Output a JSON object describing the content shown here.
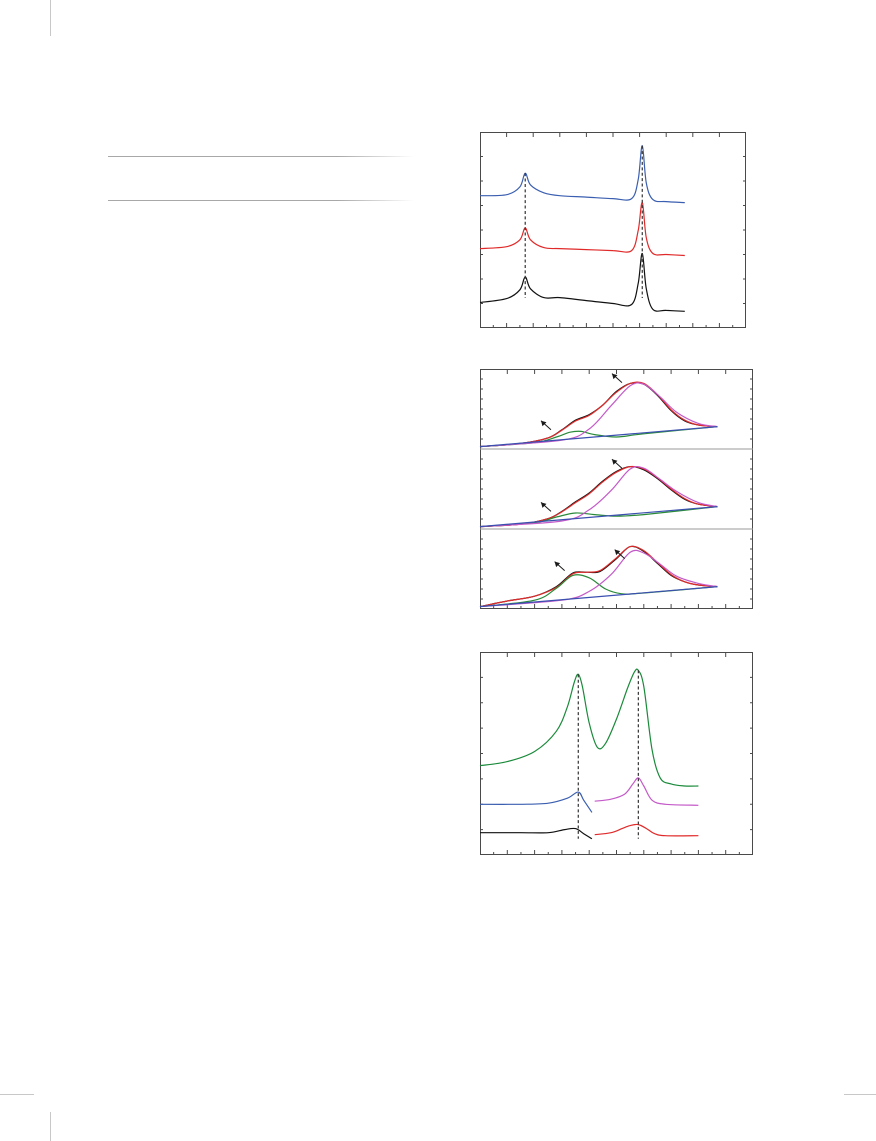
{
  "chart_data": [
    {
      "type": "line",
      "title": "",
      "xlim": [
        0,
        10
      ],
      "ylim": [
        0,
        10
      ],
      "grid": false,
      "reference_lines_x": [
        1.7,
        6.1
      ],
      "series": [
        {
          "color": "#3b5fb0",
          "x": [
            0.0,
            1.0,
            1.5,
            1.7,
            1.9,
            2.4,
            3.0,
            4.0,
            5.0,
            5.7,
            5.95,
            6.1,
            6.25,
            6.5,
            7.0,
            7.7
          ],
          "y": [
            6.75,
            6.8,
            7.2,
            7.9,
            7.3,
            6.9,
            6.75,
            6.68,
            6.6,
            6.6,
            7.6,
            9.3,
            7.4,
            6.55,
            6.45,
            6.4
          ]
        },
        {
          "color": "#e02a2a",
          "x": [
            0.0,
            1.0,
            1.5,
            1.7,
            1.9,
            2.4,
            3.0,
            4.0,
            5.0,
            5.7,
            5.95,
            6.1,
            6.25,
            6.5,
            7.0,
            7.7
          ],
          "y": [
            4.05,
            4.15,
            4.5,
            5.1,
            4.5,
            4.1,
            4.05,
            4.0,
            3.95,
            3.95,
            5.0,
            6.4,
            4.6,
            3.8,
            3.75,
            3.7
          ]
        },
        {
          "color": "#111111",
          "x": [
            0.0,
            1.0,
            1.5,
            1.7,
            1.9,
            2.4,
            3.0,
            4.0,
            5.0,
            5.7,
            5.95,
            6.1,
            6.25,
            6.5,
            7.0,
            7.7
          ],
          "y": [
            1.3,
            1.5,
            1.95,
            2.6,
            2.0,
            1.55,
            1.55,
            1.4,
            1.25,
            1.2,
            2.3,
            3.8,
            2.0,
            0.95,
            0.9,
            0.85
          ]
        }
      ]
    },
    {
      "type": "line",
      "title": "",
      "xlim": [
        0,
        10
      ],
      "ylim": [
        0,
        10
      ],
      "grid": false,
      "panels": [
        {
          "series": [
            {
              "color": "#111111",
              "x": [
                0.0,
                1.5,
                2.5,
                3.0,
                3.5,
                4.0,
                4.5,
                5.0,
                5.5,
                6.0,
                6.5,
                7.0,
                7.5,
                8.0,
                8.7
              ],
              "y": [
                0.3,
                0.7,
                1.4,
                2.4,
                3.6,
                4.3,
                5.5,
                7.2,
                8.2,
                8.1,
                6.7,
                4.8,
                3.5,
                3.0,
                2.8
              ]
            },
            {
              "color": "#e02a2a",
              "x": [
                0.0,
                1.5,
                2.5,
                3.0,
                3.5,
                4.0,
                4.5,
                5.0,
                5.5,
                6.0,
                6.5,
                7.0,
                7.5,
                8.0,
                8.7
              ],
              "y": [
                0.3,
                0.7,
                1.4,
                2.35,
                3.5,
                4.2,
                5.5,
                7.1,
                8.2,
                8.2,
                6.8,
                4.9,
                3.6,
                3.0,
                2.8
              ]
            },
            {
              "color": "#2a8a3a",
              "x": [
                0.0,
                2.0,
                2.8,
                3.3,
                3.7,
                4.2,
                5.0,
                6.0,
                8.7
              ],
              "y": [
                0.3,
                0.8,
                1.5,
                2.1,
                2.2,
                1.8,
                1.5,
                1.9,
                2.8
              ]
            },
            {
              "color": "#c45ac8",
              "x": [
                0.0,
                3.0,
                4.0,
                4.8,
                5.5,
                6.0,
                6.6,
                7.2,
                8.0,
                8.7
              ],
              "y": [
                0.3,
                1.1,
                2.5,
                5.4,
                7.9,
                8.1,
                6.5,
                4.6,
                3.2,
                2.8
              ]
            },
            {
              "color": "#3b4fb0",
              "x": [
                0.0,
                8.7
              ],
              "y": [
                0.3,
                2.8
              ]
            }
          ],
          "annotations": [
            {
              "label": "",
              "x": 2.6,
              "y": 2.4
            },
            {
              "label": "",
              "x": 5.2,
              "y": 8.3
            }
          ]
        },
        {
          "series": [
            {
              "color": "#111111",
              "x": [
                0.0,
                1.5,
                2.5,
                3.0,
                3.5,
                4.0,
                4.5,
                5.0,
                5.5,
                6.0,
                6.5,
                7.0,
                7.5,
                8.0,
                8.7
              ],
              "y": [
                0.3,
                0.6,
                1.3,
                2.2,
                3.4,
                4.5,
                6.0,
                7.2,
                7.8,
                7.4,
                6.3,
                4.9,
                3.7,
                3.1,
                2.8
              ]
            },
            {
              "color": "#e02a2a",
              "x": [
                0.0,
                1.5,
                2.5,
                3.0,
                3.5,
                4.0,
                4.5,
                5.0,
                5.5,
                6.0,
                6.5,
                7.0,
                7.5,
                8.0,
                8.7
              ],
              "y": [
                0.3,
                0.6,
                1.3,
                2.15,
                3.3,
                4.4,
                5.9,
                7.1,
                7.8,
                7.5,
                6.4,
                5.0,
                3.8,
                3.1,
                2.8
              ]
            },
            {
              "color": "#2a8a3a",
              "x": [
                0.0,
                2.0,
                2.8,
                3.5,
                4.2,
                5.0,
                6.0,
                8.7
              ],
              "y": [
                0.3,
                0.8,
                1.5,
                2.0,
                1.8,
                1.6,
                1.8,
                2.8
              ]
            },
            {
              "color": "#c45ac8",
              "x": [
                0.0,
                3.0,
                4.0,
                4.8,
                5.5,
                6.0,
                6.6,
                7.2,
                8.0,
                8.7
              ],
              "y": [
                0.3,
                1.0,
                2.4,
                4.8,
                7.5,
                7.6,
                6.2,
                4.7,
                3.3,
                2.8
              ]
            },
            {
              "color": "#3b4fb0",
              "x": [
                0.0,
                8.7
              ],
              "y": [
                0.3,
                2.8
              ]
            }
          ],
          "annotations": [
            {
              "label": "",
              "x": 2.6,
              "y": 2.2
            },
            {
              "label": "",
              "x": 5.2,
              "y": 7.6
            }
          ]
        },
        {
          "series": [
            {
              "color": "#111111",
              "x": [
                0.0,
                1.0,
                2.0,
                2.8,
                3.4,
                3.9,
                4.4,
                5.0,
                5.5,
                6.0,
                6.5,
                7.0,
                7.5,
                8.0,
                8.7
              ],
              "y": [
                0.3,
                1.0,
                1.6,
                2.8,
                4.5,
                4.6,
                4.7,
                6.3,
                7.8,
                7.2,
                5.7,
                4.2,
                3.4,
                3.0,
                2.8
              ]
            },
            {
              "color": "#e02a2a",
              "x": [
                0.0,
                1.0,
                2.0,
                2.8,
                3.4,
                3.9,
                4.4,
                5.0,
                5.5,
                6.0,
                6.5,
                7.0,
                7.5,
                8.0,
                8.7
              ],
              "y": [
                0.3,
                1.0,
                1.6,
                2.7,
                4.4,
                4.6,
                4.8,
                6.4,
                7.8,
                7.3,
                5.8,
                4.3,
                3.4,
                3.0,
                2.8
              ]
            },
            {
              "color": "#2a8a3a",
              "x": [
                0.0,
                2.0,
                2.8,
                3.4,
                4.0,
                4.6,
                5.2,
                6.0,
                8.7
              ],
              "y": [
                0.3,
                1.1,
                2.6,
                4.2,
                3.9,
                2.5,
                1.9,
                2.0,
                2.8
              ]
            },
            {
              "color": "#c45ac8",
              "x": [
                0.0,
                3.0,
                4.0,
                4.8,
                5.5,
                6.0,
                6.6,
                7.2,
                8.0,
                8.7
              ],
              "y": [
                0.3,
                1.1,
                2.2,
                4.3,
                7.1,
                7.0,
                5.6,
                4.1,
                3.2,
                2.8
              ]
            },
            {
              "color": "#3b4fb0",
              "x": [
                0.0,
                8.7
              ],
              "y": [
                0.3,
                2.8
              ]
            }
          ],
          "annotations": [
            {
              "label": "",
              "x": 3.1,
              "y": 4.8
            },
            {
              "label": "",
              "x": 5.3,
              "y": 6.3
            }
          ]
        }
      ]
    },
    {
      "type": "line",
      "title": "",
      "xlim": [
        0,
        10
      ],
      "ylim": [
        0,
        10
      ],
      "grid": false,
      "reference_lines_x": [
        3.6,
        5.8
      ],
      "series": [
        {
          "color": "#1a8a3a",
          "x": [
            0.0,
            1.0,
            2.0,
            2.8,
            3.2,
            3.45,
            3.6,
            3.75,
            4.0,
            4.3,
            4.6,
            5.0,
            5.4,
            5.65,
            5.8,
            6.0,
            6.3,
            6.6,
            7.0,
            7.5,
            8.0
          ],
          "y": [
            4.4,
            4.6,
            5.1,
            6.1,
            7.3,
            8.5,
            8.9,
            8.3,
            6.5,
            5.3,
            5.5,
            6.7,
            8.2,
            9.0,
            9.1,
            8.3,
            5.2,
            3.8,
            3.5,
            3.4,
            3.4
          ]
        },
        {
          "color": "#3b5fb0",
          "x": [
            0.0,
            1.5,
            2.5,
            3.2,
            3.6,
            3.8,
            4.1
          ],
          "y": [
            2.5,
            2.5,
            2.55,
            2.8,
            3.1,
            2.7,
            2.1
          ]
        },
        {
          "color": "#111111",
          "x": [
            0.0,
            1.5,
            2.5,
            3.1,
            3.5,
            3.8,
            4.1
          ],
          "y": [
            1.1,
            1.1,
            1.1,
            1.25,
            1.3,
            1.05,
            0.8
          ]
        },
        {
          "color": "#c45ac8",
          "x": [
            4.2,
            4.8,
            5.3,
            5.6,
            5.8,
            6.0,
            6.3,
            6.8,
            8.0
          ],
          "y": [
            2.65,
            2.75,
            3.0,
            3.5,
            3.8,
            3.4,
            2.7,
            2.5,
            2.45
          ]
        },
        {
          "color": "#e02a2a",
          "x": [
            4.2,
            4.8,
            5.2,
            5.5,
            5.8,
            6.1,
            6.4,
            6.8,
            8.0
          ],
          "y": [
            1.0,
            1.1,
            1.3,
            1.45,
            1.5,
            1.3,
            1.05,
            0.95,
            0.95
          ]
        }
      ]
    }
  ]
}
